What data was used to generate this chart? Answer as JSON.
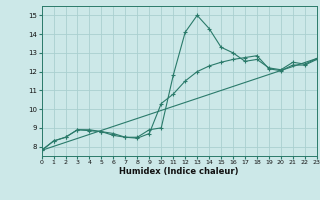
{
  "xlabel": "Humidex (Indice chaleur)",
  "xlim": [
    0,
    23
  ],
  "ylim": [
    7.5,
    15.5
  ],
  "xticks": [
    0,
    1,
    2,
    3,
    4,
    5,
    6,
    7,
    8,
    9,
    10,
    11,
    12,
    13,
    14,
    15,
    16,
    17,
    18,
    19,
    20,
    21,
    22,
    23
  ],
  "yticks": [
    8,
    9,
    10,
    11,
    12,
    13,
    14,
    15
  ],
  "bg_color": "#cce8e8",
  "grid_color": "#aad0d0",
  "line_color": "#2a7a6a",
  "series1_x": [
    0,
    1,
    2,
    3,
    4,
    5,
    6,
    7,
    8,
    9,
    10,
    11,
    12,
    13,
    14,
    15,
    16,
    17,
    18,
    19,
    20,
    21,
    22,
    23
  ],
  "series1_y": [
    7.8,
    8.3,
    8.5,
    8.9,
    8.9,
    8.8,
    8.7,
    8.5,
    8.5,
    8.9,
    9.0,
    11.8,
    14.1,
    15.0,
    14.3,
    13.3,
    13.0,
    12.55,
    12.65,
    12.2,
    12.1,
    12.5,
    12.4,
    12.7
  ],
  "series2_x": [
    0,
    1,
    2,
    3,
    4,
    5,
    6,
    7,
    8,
    9,
    10,
    11,
    12,
    13,
    14,
    15,
    16,
    17,
    18,
    19,
    20,
    21,
    22,
    23
  ],
  "series2_y": [
    7.8,
    8.3,
    8.5,
    8.9,
    8.85,
    8.8,
    8.6,
    8.5,
    8.45,
    8.7,
    10.3,
    10.8,
    11.5,
    12.0,
    12.3,
    12.5,
    12.65,
    12.75,
    12.85,
    12.15,
    12.05,
    12.35,
    12.35,
    12.65
  ],
  "series3_x": [
    0,
    23
  ],
  "series3_y": [
    7.8,
    12.7
  ]
}
